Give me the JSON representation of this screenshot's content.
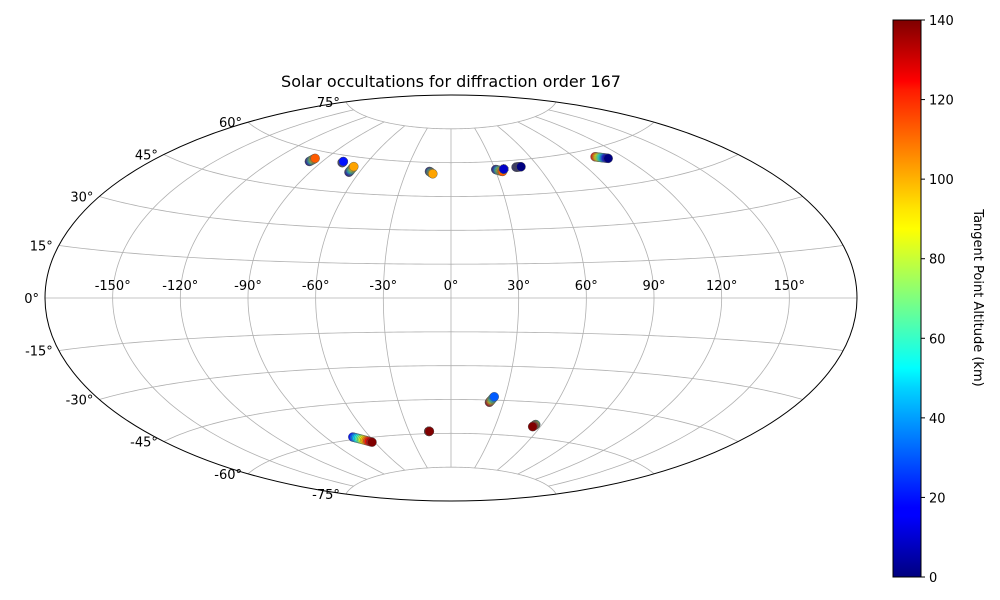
{
  "chart_data": {
    "type": "scatter",
    "projection": "aitoff",
    "title": "Solar occultations for diffraction order 167",
    "xlabel": "",
    "ylabel": "",
    "longitude_ticks": [
      -150,
      -120,
      -90,
      -60,
      -30,
      0,
      30,
      60,
      90,
      120,
      150
    ],
    "longitude_tick_labels": [
      "-150°",
      "-120°",
      "-90°",
      "-60°",
      "-30°",
      "0°",
      "30°",
      "60°",
      "90°",
      "120°",
      "150°"
    ],
    "latitude_ticks": [
      75,
      60,
      45,
      30,
      15,
      0,
      -15,
      -30,
      -45,
      -60,
      -75
    ],
    "latitude_tick_labels": [
      "75°",
      "60°",
      "45°",
      "30°",
      "15°",
      "0°",
      "-15°",
      "-30°",
      "-45°",
      "-60°",
      "-75°"
    ],
    "grid": true,
    "colorbar": {
      "label": "Tangent Point Altitude (km)",
      "min": 0,
      "max": 140,
      "ticks": [
        0,
        20,
        40,
        60,
        80,
        100,
        120,
        140
      ],
      "tick_labels": [
        "0",
        "20",
        "40",
        "60",
        "80",
        "100",
        "120",
        "140"
      ],
      "colormap": "jet",
      "placement": "right"
    },
    "tracks": [
      {
        "lon_start": -98.0,
        "lat_start": 55.5,
        "lon_end": -97.0,
        "lat_end": 57.0,
        "alt_start": 0,
        "alt_end": 110
      },
      {
        "lon_start": -76.5,
        "lat_start": 57.0,
        "lon_end": -76.5,
        "lat_end": 57.5,
        "alt_start": 0,
        "alt_end": 20
      },
      {
        "lon_start": -66.5,
        "lat_start": 53.5,
        "lon_end": -66.5,
        "lat_end": 56.0,
        "alt_start": 0,
        "alt_end": 100
      },
      {
        "lon_start": -14.5,
        "lat_start": 56.0,
        "lon_end": -12.0,
        "lat_end": 55.0,
        "alt_start": 0,
        "alt_end": 100
      },
      {
        "lon_start": 30.5,
        "lat_start": 56.5,
        "lon_end": 34.5,
        "lat_end": 55.5,
        "alt_start": 0,
        "alt_end": 110
      },
      {
        "lon_start": 36.0,
        "lat_start": 56.5,
        "lon_end": 36.0,
        "lat_end": 56.5,
        "alt_start": 0,
        "alt_end": 10
      },
      {
        "lon_start": 45.0,
        "lat_start": 57.0,
        "lon_end": 48.5,
        "lat_end": 57.0,
        "alt_start": 0,
        "alt_end": 0
      },
      {
        "lon_start": 103.5,
        "lat_start": 57.0,
        "lon_end": 110.0,
        "lat_end": 55.5,
        "alt_start": 120,
        "alt_end": 0
      },
      {
        "lon_start": -72.0,
        "lat_start": -59.0,
        "lon_end": -62.0,
        "lat_end": -62.0,
        "alt_start": 20,
        "alt_end": 140
      },
      {
        "lon_start": -16.0,
        "lat_start": -59.0,
        "lon_end": -15.5,
        "lat_end": -59.0,
        "alt_start": 140,
        "alt_end": 140
      },
      {
        "lon_start": 22.0,
        "lat_start": -46.0,
        "lon_end": 24.0,
        "lat_end": -43.5,
        "alt_start": 140,
        "alt_end": 30
      },
      {
        "lon_start": 56.0,
        "lat_start": -54.5,
        "lon_end": 55.0,
        "lat_end": -55.5,
        "alt_start": 50,
        "alt_end": 140
      }
    ]
  }
}
